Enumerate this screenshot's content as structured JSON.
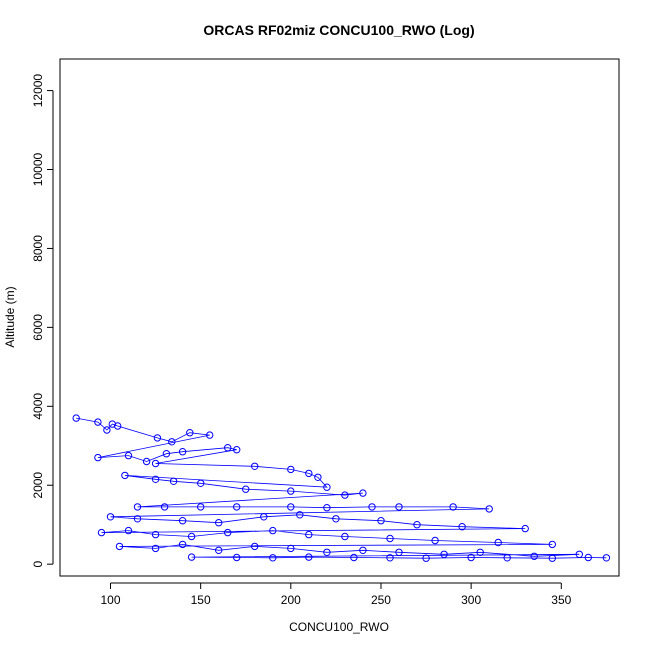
{
  "chart_data": {
    "type": "line",
    "title": "ORCAS RF02miz CONCU100_RWO (Log)",
    "xlabel": "CONCU100_RWO",
    "ylabel": "Altitude (m)",
    "xlim": [
      72,
      382
    ],
    "ylim": [
      -300,
      12800
    ],
    "xticks": [
      100,
      150,
      200,
      250,
      300,
      350
    ],
    "yticks": [
      0,
      2000,
      4000,
      6000,
      8000,
      10000,
      12000
    ],
    "grid": false,
    "colors": {
      "series": "#0000ff",
      "axis": "#000000"
    },
    "markers": "open-circle",
    "series": [
      {
        "x": [
          81,
          93,
          98,
          101,
          104,
          126,
          134,
          144,
          155,
          93,
          110,
          120,
          131,
          140,
          165,
          170,
          125,
          180,
          200,
          210,
          215,
          220,
          108,
          125,
          135,
          150,
          175,
          200,
          230,
          240,
          115,
          130,
          150,
          170,
          200,
          220,
          245,
          260,
          290,
          310,
          100,
          115,
          140,
          160,
          185,
          205,
          225,
          250,
          270,
          295,
          330,
          95,
          110,
          125,
          145,
          165,
          190,
          210,
          230,
          255,
          280,
          315,
          345,
          105,
          125,
          140,
          160,
          180,
          200,
          220,
          240,
          260,
          285,
          305,
          335,
          360,
          145,
          170,
          190,
          210,
          235,
          255,
          275,
          300,
          320,
          345,
          365,
          375
        ],
        "y": [
          3700,
          3600,
          3400,
          3550,
          3500,
          3200,
          3100,
          3330,
          3270,
          2700,
          2750,
          2600,
          2800,
          2850,
          2950,
          2900,
          2550,
          2480,
          2400,
          2300,
          2200,
          1950,
          2250,
          2150,
          2100,
          2050,
          1900,
          1850,
          1750,
          1800,
          1450,
          1450,
          1450,
          1450,
          1450,
          1430,
          1450,
          1450,
          1450,
          1400,
          1200,
          1150,
          1100,
          1050,
          1200,
          1250,
          1150,
          1100,
          1000,
          950,
          900,
          800,
          850,
          750,
          700,
          800,
          850,
          750,
          700,
          650,
          600,
          550,
          500,
          450,
          400,
          500,
          350,
          450,
          400,
          300,
          350,
          300,
          250,
          300,
          200,
          250,
          180,
          170,
          160,
          180,
          170,
          160,
          150,
          170,
          160,
          150,
          170,
          160
        ]
      }
    ]
  }
}
